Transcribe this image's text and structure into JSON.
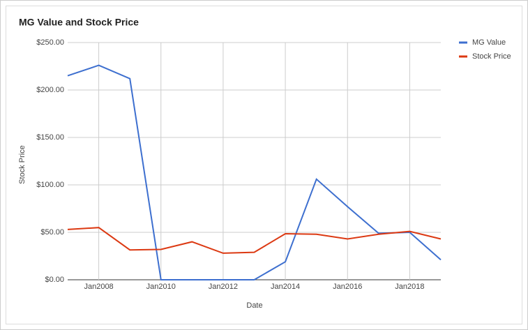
{
  "chart_data": {
    "type": "line",
    "title": "MG Value and Stock Price",
    "x_label": "Date",
    "y_label": "Stock Price",
    "x": [
      "2007-01",
      "2008-01",
      "2009-01",
      "2010-01",
      "2011-01",
      "2012-01",
      "2013-01",
      "2014-01",
      "2015-01",
      "2016-01",
      "2017-01",
      "2018-01",
      "2019-01"
    ],
    "xlim": [
      "2007-01",
      "2019-01"
    ],
    "xticks": [
      {
        "value": "2008-01",
        "label": "Jan2008"
      },
      {
        "value": "2010-01",
        "label": "Jan2010"
      },
      {
        "value": "2012-01",
        "label": "Jan2012"
      },
      {
        "value": "2014-01",
        "label": "Jan2014"
      },
      {
        "value": "2016-01",
        "label": "Jan2016"
      },
      {
        "value": "2018-01",
        "label": "Jan2018"
      }
    ],
    "ylim": [
      0,
      250
    ],
    "yticks": [
      {
        "value": 0,
        "label": "$0.00"
      },
      {
        "value": 50,
        "label": "$50.00"
      },
      {
        "value": 100,
        "label": "$100.00"
      },
      {
        "value": 150,
        "label": "$150.00"
      },
      {
        "value": 200,
        "label": "$200.00"
      },
      {
        "value": 250,
        "label": "$250.00"
      }
    ],
    "grid": true,
    "legend": "right",
    "series": [
      {
        "name": "MG Value",
        "color": "#3d6fcf",
        "values": [
          215,
          226,
          212,
          0,
          0,
          0,
          0,
          19,
          106,
          77,
          49,
          50,
          21
        ]
      },
      {
        "name": "Stock Price",
        "color": "#dc3912",
        "values": [
          53,
          55,
          31.5,
          32,
          40,
          28,
          29,
          48.5,
          48,
          43,
          48,
          51,
          43
        ]
      }
    ]
  }
}
